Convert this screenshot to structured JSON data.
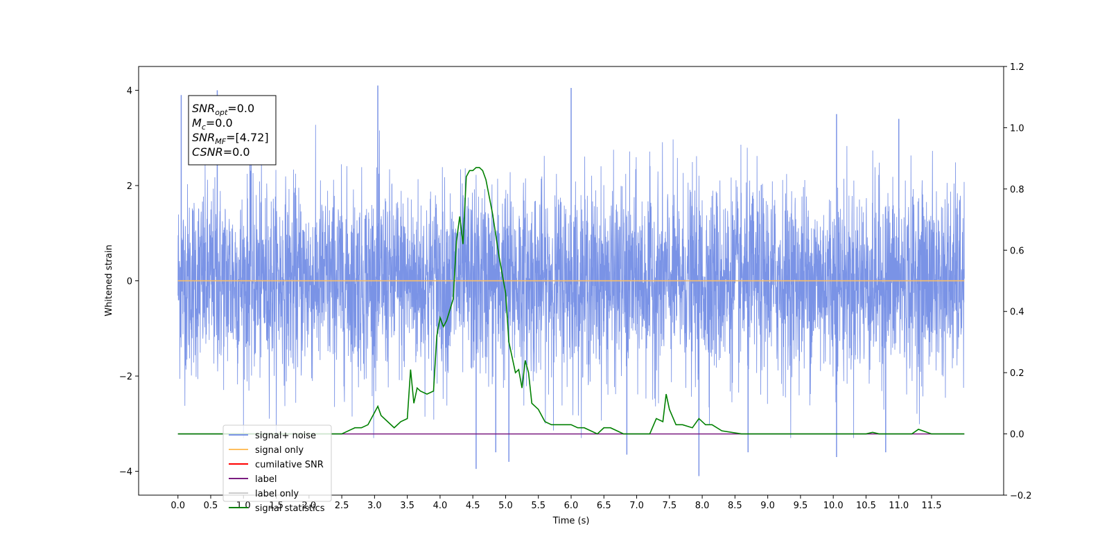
{
  "chart_data": {
    "type": "line",
    "title": "",
    "xlabel": "Time (s)",
    "ylabel": "Whitened strain",
    "ylabel_right": "",
    "xlim": [
      -0.6,
      12.6
    ],
    "ylim": [
      -4.5,
      4.5
    ],
    "ylim_right": [
      -0.2,
      1.2
    ],
    "x_ticks": [
      0.0,
      0.5,
      1.0,
      1.5,
      2.0,
      2.5,
      3.0,
      3.5,
      4.0,
      4.5,
      5.0,
      5.5,
      6.0,
      6.5,
      7.0,
      7.5,
      8.0,
      8.5,
      9.0,
      9.5,
      10.0,
      10.5,
      11.0,
      11.5
    ],
    "x_tick_labels": [
      "0.0",
      "0.5",
      "1.0",
      "1.5",
      "2.0",
      "2.5",
      "3.0",
      "3.5",
      "4.0",
      "4.5",
      "5.0",
      "5.5",
      "6.0",
      "6.5",
      "7.0",
      "7.5",
      "8.0",
      "8.5",
      "9.0",
      "9.5",
      "10.0",
      "10.5",
      "11.0",
      "11.5"
    ],
    "y_ticks": [
      -4,
      -2,
      0,
      2,
      4
    ],
    "y_tick_labels": [
      "−4",
      "−2",
      "0",
      "2",
      "4"
    ],
    "y_right_ticks": [
      -0.2,
      0.0,
      0.2,
      0.4,
      0.6,
      0.8,
      1.0,
      1.2
    ],
    "y_right_tick_labels": [
      "−0.2",
      "0.0",
      "0.2",
      "0.4",
      "0.6",
      "0.8",
      "1.0",
      "1.2"
    ],
    "grid": false,
    "legend_position": "bottom-left",
    "annotation": [
      {
        "main": "SNR",
        "sub": "opt",
        "rest": "=0.0"
      },
      {
        "main": "M",
        "sub": "c",
        "rest": "=0.0"
      },
      {
        "main": "SNR",
        "sub": "MF",
        "rest": "=[4.72]"
      },
      {
        "main": "CSNR",
        "sub": "",
        "rest": "=0.0"
      }
    ],
    "series": [
      {
        "name": "signal+ noise",
        "axis": "left",
        "color": "#7a93e6",
        "kind": "noise",
        "x_range": [
          0.0,
          12.0
        ],
        "band_range": [
          -2.0,
          2.0
        ],
        "spikes": [
          {
            "x": 0.05,
            "y": 3.9
          },
          {
            "x": 0.6,
            "y": 4.0
          },
          {
            "x": 3.05,
            "y": 4.1
          },
          {
            "x": 6.0,
            "y": 4.05
          },
          {
            "x": 4.55,
            "y": -3.95
          },
          {
            "x": 5.05,
            "y": -3.8
          },
          {
            "x": 7.95,
            "y": -4.1
          },
          {
            "x": 10.05,
            "y": 3.5
          },
          {
            "x": 10.05,
            "y": -3.7
          },
          {
            "x": 11.0,
            "y": 3.4
          },
          {
            "x": 10.8,
            "y": -3.6
          },
          {
            "x": 8.7,
            "y": -3.6
          },
          {
            "x": 6.85,
            "y": -3.65
          },
          {
            "x": 4.85,
            "y": -3.6
          },
          {
            "x": 1.1,
            "y": 3.7
          }
        ]
      },
      {
        "name": "signal only",
        "axis": "left",
        "color": "#ffbf5e",
        "x": [
          0.0,
          12.0
        ],
        "y": [
          0.0,
          0.0
        ]
      },
      {
        "name": "cumilative SNR",
        "axis": "right",
        "color": "#ff0000",
        "x": [],
        "y": []
      },
      {
        "name": "label",
        "axis": "right",
        "color": "#7a1c80",
        "x": [
          0.0,
          12.0
        ],
        "y": [
          0.0,
          0.0
        ]
      },
      {
        "name": "label only",
        "axis": "right",
        "color": "#cccccc",
        "x": [],
        "y": []
      },
      {
        "name": "signal statistics",
        "axis": "right",
        "color": "#008000",
        "x": [
          0.0,
          1.0,
          2.0,
          2.5,
          2.7,
          2.8,
          2.9,
          3.0,
          3.05,
          3.1,
          3.2,
          3.3,
          3.4,
          3.5,
          3.55,
          3.6,
          3.65,
          3.7,
          3.8,
          3.9,
          3.95,
          4.0,
          4.05,
          4.1,
          4.2,
          4.25,
          4.3,
          4.35,
          4.4,
          4.45,
          4.5,
          4.55,
          4.6,
          4.65,
          4.7,
          4.8,
          4.9,
          5.0,
          5.05,
          5.15,
          5.2,
          5.25,
          5.3,
          5.35,
          5.4,
          5.5,
          5.6,
          5.7,
          5.8,
          6.0,
          6.1,
          6.2,
          6.3,
          6.4,
          6.5,
          6.6,
          6.7,
          6.8,
          7.0,
          7.2,
          7.3,
          7.4,
          7.45,
          7.5,
          7.6,
          7.7,
          7.85,
          7.95,
          8.05,
          8.15,
          8.3,
          8.6,
          9.0,
          9.5,
          10.0,
          10.5,
          10.6,
          10.7,
          11.0,
          11.2,
          11.3,
          11.5,
          12.0
        ],
        "y": [
          0.0,
          0.0,
          0.0,
          0.0,
          0.02,
          0.02,
          0.03,
          0.07,
          0.09,
          0.06,
          0.04,
          0.02,
          0.04,
          0.05,
          0.21,
          0.1,
          0.15,
          0.14,
          0.13,
          0.14,
          0.32,
          0.38,
          0.35,
          0.37,
          0.44,
          0.63,
          0.71,
          0.62,
          0.84,
          0.86,
          0.86,
          0.87,
          0.87,
          0.86,
          0.83,
          0.72,
          0.58,
          0.46,
          0.3,
          0.2,
          0.21,
          0.15,
          0.24,
          0.2,
          0.1,
          0.08,
          0.04,
          0.03,
          0.03,
          0.03,
          0.02,
          0.02,
          0.01,
          0.0,
          0.02,
          0.02,
          0.01,
          0.0,
          0.0,
          0.0,
          0.05,
          0.04,
          0.13,
          0.08,
          0.03,
          0.03,
          0.02,
          0.05,
          0.03,
          0.03,
          0.01,
          0.0,
          0.0,
          0.0,
          0.0,
          0.0,
          0.005,
          0.0,
          0.0,
          0.0,
          0.015,
          0.0,
          0.0
        ]
      }
    ]
  }
}
